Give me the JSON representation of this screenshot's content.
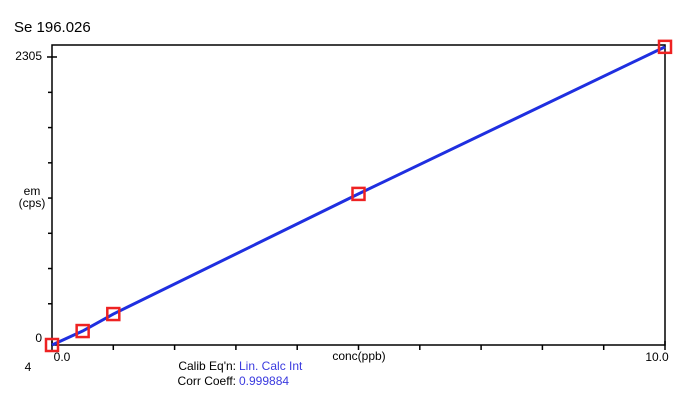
{
  "chart_data": {
    "type": "line",
    "title": "Se 196.026",
    "y_label_lines": [
      "em",
      "(cps)"
    ],
    "x_label": "conc(ppb)",
    "corner_label": "4",
    "x": [
      0,
      0.5,
      1,
      5,
      10
    ],
    "series": [
      {
        "name": "Se 196.026",
        "color": "#1f2fe0",
        "marker_color": "#ee2222",
        "values": [
          -49,
          65,
          204,
          1186,
          2388
        ]
      }
    ],
    "xlim": [
      0,
      10
    ],
    "ylim": [
      -49,
      2403
    ],
    "xticks": [
      {
        "value": 0,
        "label": "0.0"
      },
      {
        "value": 10,
        "label": "10.0"
      }
    ],
    "x_minor_ticks": [
      1,
      2,
      3,
      4,
      5,
      6,
      7,
      8,
      9
    ],
    "yticks": [
      0,
      2305
    ],
    "y_minor_ticks": [
      288,
      576,
      864,
      1152,
      1440,
      1728,
      2016
    ],
    "calibration": {
      "equation_label": "Calib Eq'n:",
      "equation": "Lin. Calc Int",
      "coeff_label": "Corr Coeff:",
      "coeff": "0.999884"
    }
  }
}
